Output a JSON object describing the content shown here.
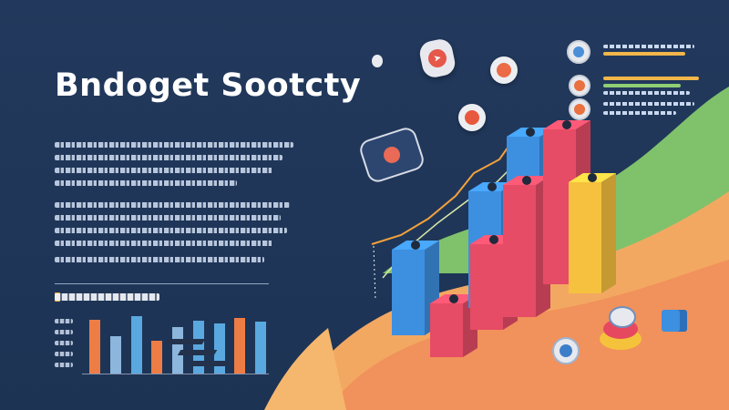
{
  "title": "Bndoget Sootcty",
  "colors": {
    "background": "#1f3557",
    "bar_orange": "#ee7d45",
    "bar_blue": "#5aa8e0",
    "bar_pale": "#8cb6dc",
    "block_red": "#e64c66",
    "block_blue": "#3d8fe0",
    "block_yellow": "#f6c13f",
    "wave_green": "#7fc26b",
    "wave_orange": "#f39a5c"
  },
  "icons": {
    "floating": [
      "rocket-icon",
      "rocket-icon",
      "rocket-icon",
      "chart-icon"
    ],
    "legend": [
      "globe-icon",
      "globe-icon",
      "globe-icon"
    ],
    "cube_tops": [
      "globe-icon",
      "globe-icon",
      "gear-icon",
      "globe-icon",
      "globe-icon",
      "gear-icon"
    ],
    "desk": [
      "globe-icon",
      "trophy-icon",
      "box-icon"
    ]
  },
  "mini_chart": {
    "bars": [
      {
        "value": 0.9,
        "color": "orange"
      },
      {
        "value": 0.62,
        "color": "pale"
      },
      {
        "value": 0.95,
        "color": "blue"
      },
      {
        "value": 0.55,
        "color": "orange"
      },
      {
        "value": 0.78,
        "color": "pale"
      },
      {
        "value": 0.88,
        "color": "blue"
      },
      {
        "value": 0.84,
        "color": "blue"
      },
      {
        "value": 0.92,
        "color": "orange"
      },
      {
        "value": 0.86,
        "color": "blue"
      }
    ]
  },
  "cube_chart": {
    "blocks": [
      {
        "value": 0.55,
        "color": "block_blue"
      },
      {
        "value": 0.35,
        "color": "block_red"
      },
      {
        "value": 0.75,
        "color": "block_blue"
      },
      {
        "value": 0.55,
        "color": "block_red"
      },
      {
        "value": 0.95,
        "color": "block_blue"
      },
      {
        "value": 0.85,
        "color": "block_red"
      },
      {
        "value": 1.0,
        "color": "block_red"
      },
      {
        "value": 0.72,
        "color": "block_yellow"
      }
    ]
  }
}
